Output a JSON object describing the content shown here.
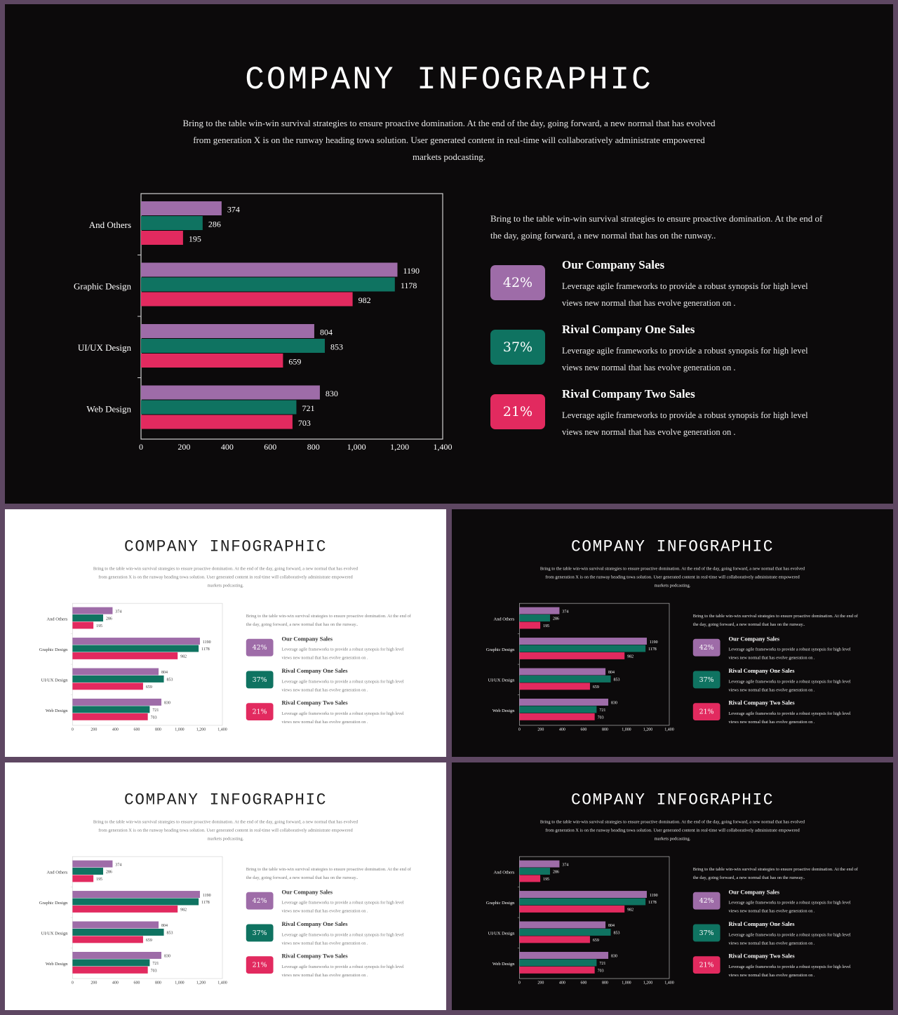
{
  "slide": {
    "title": "COMPANY INFOGRAPHIC",
    "intro": "Bring to the table win-win survival strategies to ensure proactive domination. At the end of the day, going forward, a new normal that has evolved from generation X is on the runway heading towa solution. User generated content in real-time will collaboratively administrate empowered markets podcasting.",
    "side_text": "Bring to the table win-win survival strategies to ensure proactive domination. At the end of the day, going forward, a new normal that has on the runway..",
    "stats": [
      {
        "value": "42%",
        "title": "Our Company Sales",
        "desc": "Leverage agile frameworks to provide a robust synopsis for high level views new normal that has evolve generation on .",
        "color": "#9e6ca8"
      },
      {
        "value": "37%",
        "title": "Rival Company One Sales",
        "desc": "Leverage agile frameworks to provide a robust synopsis for high level views new normal that has evolve generation on .",
        "color": "#0f7361"
      },
      {
        "value": "21%",
        "title": "Rival Company Two Sales",
        "desc": "Leverage agile frameworks to provide a robust synopsis for high level views new normal that has evolve generation on .",
        "color": "#e22a5f"
      }
    ]
  },
  "themes": {
    "dark": {
      "background": "#0c0a0b",
      "text": "#ffffff"
    },
    "light": {
      "background": "#ffffff",
      "text": "#222222"
    }
  },
  "frame_color": "#5e4762",
  "chart_data": {
    "type": "bar",
    "orientation": "horizontal",
    "categories": [
      "And Others",
      "Graphic Design",
      "UI/UX Design",
      "Web Design"
    ],
    "series": [
      {
        "values": [
          374,
          1190,
          804,
          830
        ],
        "color": "#9e6ca8"
      },
      {
        "values": [
          286,
          1178,
          853,
          721
        ],
        "color": "#0f7361"
      },
      {
        "values": [
          195,
          982,
          659,
          703
        ],
        "color": "#e22a5f"
      }
    ],
    "xlim": [
      0,
      1400
    ],
    "xticks": [
      "0",
      "200",
      "400",
      "600",
      "800",
      "1,000",
      "1,200",
      "1,400"
    ],
    "grid": false,
    "legend": "none"
  }
}
